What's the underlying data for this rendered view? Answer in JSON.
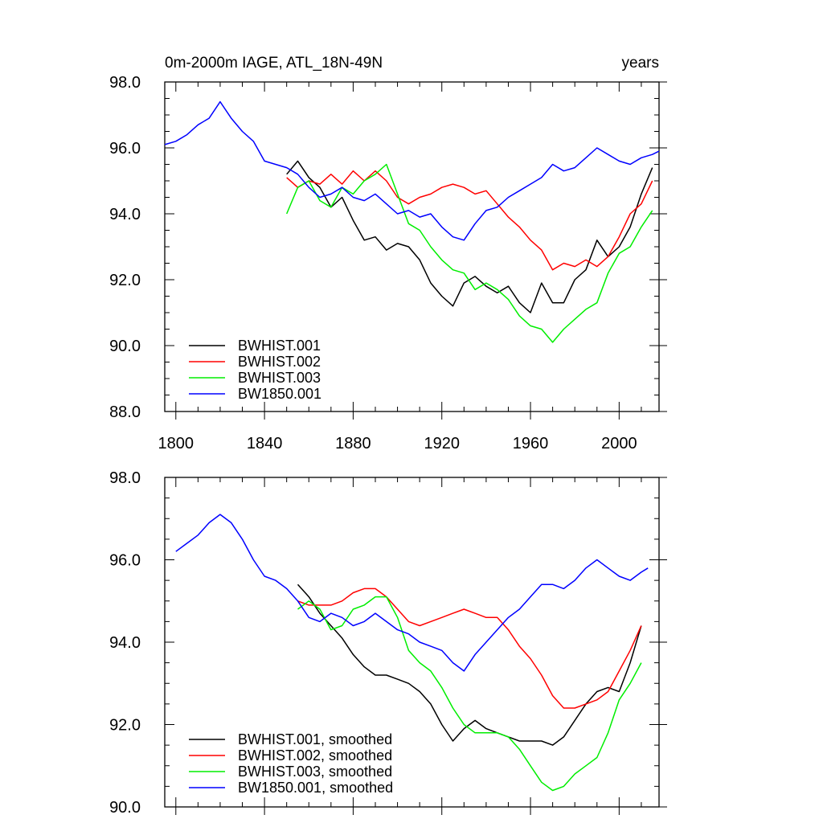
{
  "chart_data": [
    {
      "type": "line",
      "title": "0m-2000m IAGE, ATL_18N-49N",
      "units": "years",
      "xlim": [
        1795,
        2018
      ],
      "ylim": [
        88,
        98
      ],
      "xticks": [
        1800,
        1840,
        1880,
        1920,
        1960,
        2000
      ],
      "xtick_labels": [
        "1800",
        "1840",
        "1880",
        "1920",
        "1960",
        "2000"
      ],
      "yticks": [
        88,
        90,
        92,
        94,
        96,
        98
      ],
      "ytick_labels": [
        "88.0",
        "90.0",
        "92.0",
        "94.0",
        "96.0",
        "98.0"
      ],
      "legend_location": "bottom-left",
      "series": [
        {
          "name": "BWHIST.001",
          "color": "#000000",
          "x": [
            1850,
            1855,
            1860,
            1865,
            1870,
            1875,
            1880,
            1885,
            1890,
            1895,
            1900,
            1905,
            1910,
            1915,
            1920,
            1925,
            1930,
            1935,
            1940,
            1945,
            1950,
            1955,
            1960,
            1965,
            1970,
            1975,
            1980,
            1985,
            1990,
            1995,
            2000,
            2005,
            2010,
            2015
          ],
          "y": [
            95.2,
            95.6,
            95.1,
            94.8,
            94.2,
            94.5,
            93.8,
            93.2,
            93.3,
            92.9,
            93.1,
            93.0,
            92.6,
            91.9,
            91.5,
            91.2,
            91.9,
            92.1,
            91.8,
            91.6,
            91.8,
            91.3,
            91.0,
            91.9,
            91.3,
            91.3,
            92.0,
            92.3,
            93.2,
            92.7,
            93.0,
            93.6,
            94.6,
            95.4
          ]
        },
        {
          "name": "BWHIST.002",
          "color": "#ff0000",
          "x": [
            1850,
            1855,
            1860,
            1865,
            1870,
            1875,
            1880,
            1885,
            1890,
            1895,
            1900,
            1905,
            1910,
            1915,
            1920,
            1925,
            1930,
            1935,
            1940,
            1945,
            1950,
            1955,
            1960,
            1965,
            1970,
            1975,
            1980,
            1985,
            1990,
            1995,
            2000,
            2005,
            2010,
            2015
          ],
          "y": [
            95.1,
            94.8,
            95.0,
            94.9,
            95.2,
            94.9,
            95.3,
            95.0,
            95.3,
            95.0,
            94.5,
            94.3,
            94.5,
            94.6,
            94.8,
            94.9,
            94.8,
            94.6,
            94.7,
            94.3,
            93.9,
            93.6,
            93.2,
            92.9,
            92.3,
            92.5,
            92.4,
            92.6,
            92.4,
            92.7,
            93.3,
            94.0,
            94.3,
            95.0
          ]
        },
        {
          "name": "BWHIST.003",
          "color": "#00ee00",
          "x": [
            1850,
            1855,
            1860,
            1865,
            1870,
            1875,
            1880,
            1885,
            1890,
            1895,
            1900,
            1905,
            1910,
            1915,
            1920,
            1925,
            1930,
            1935,
            1940,
            1945,
            1950,
            1955,
            1960,
            1965,
            1970,
            1975,
            1980,
            1985,
            1990,
            1995,
            2000,
            2005,
            2010,
            2015
          ],
          "y": [
            94.0,
            94.8,
            95.0,
            94.4,
            94.2,
            94.8,
            94.6,
            95.0,
            95.2,
            95.5,
            94.6,
            93.7,
            93.5,
            93.0,
            92.6,
            92.3,
            92.2,
            91.7,
            91.9,
            91.7,
            91.4,
            90.9,
            90.6,
            90.5,
            90.1,
            90.5,
            90.8,
            91.1,
            91.3,
            92.2,
            92.8,
            93.0,
            93.6,
            94.1
          ]
        },
        {
          "name": "BW1850.001",
          "color": "#0000ff",
          "x": [
            1795,
            1800,
            1805,
            1810,
            1815,
            1820,
            1825,
            1830,
            1835,
            1840,
            1845,
            1850,
            1855,
            1860,
            1865,
            1870,
            1875,
            1880,
            1885,
            1890,
            1895,
            1900,
            1905,
            1910,
            1915,
            1920,
            1925,
            1930,
            1935,
            1940,
            1945,
            1950,
            1955,
            1960,
            1965,
            1970,
            1975,
            1980,
            1985,
            1990,
            1995,
            2000,
            2005,
            2010,
            2015,
            2018
          ],
          "y": [
            96.1,
            96.2,
            96.4,
            96.7,
            96.9,
            97.4,
            96.9,
            96.5,
            96.2,
            95.6,
            95.5,
            95.4,
            95.2,
            94.8,
            94.5,
            94.6,
            94.8,
            94.5,
            94.4,
            94.6,
            94.3,
            94.0,
            94.1,
            93.9,
            94.0,
            93.6,
            93.3,
            93.2,
            93.7,
            94.1,
            94.2,
            94.5,
            94.7,
            94.9,
            95.1,
            95.5,
            95.3,
            95.4,
            95.7,
            96.0,
            95.8,
            95.6,
            95.5,
            95.7,
            95.8,
            95.9
          ]
        }
      ]
    },
    {
      "type": "line",
      "title": "",
      "xlim": [
        1795,
        2018
      ],
      "ylim": [
        90,
        98
      ],
      "xticks": [
        1800,
        1840,
        1880,
        1920,
        1960,
        2000
      ],
      "yticks": [
        90,
        92,
        94,
        96,
        98
      ],
      "ytick_labels": [
        "90.0",
        "92.0",
        "94.0",
        "96.0",
        "98.0"
      ],
      "legend_location": "bottom-left",
      "series": [
        {
          "name": "BWHIST.001, smoothed",
          "color": "#000000",
          "x": [
            1855,
            1860,
            1865,
            1870,
            1875,
            1880,
            1885,
            1890,
            1895,
            1900,
            1905,
            1910,
            1915,
            1920,
            1925,
            1930,
            1935,
            1940,
            1945,
            1950,
            1955,
            1960,
            1965,
            1970,
            1975,
            1980,
            1985,
            1990,
            1995,
            2000,
            2005,
            2010
          ],
          "y": [
            95.4,
            95.1,
            94.7,
            94.4,
            94.1,
            93.7,
            93.4,
            93.2,
            93.2,
            93.1,
            93.0,
            92.8,
            92.5,
            92.0,
            91.6,
            91.9,
            92.1,
            91.9,
            91.8,
            91.7,
            91.6,
            91.6,
            91.6,
            91.5,
            91.7,
            92.1,
            92.5,
            92.8,
            92.9,
            92.8,
            93.5,
            94.4
          ]
        },
        {
          "name": "BWHIST.002, smoothed",
          "color": "#ff0000",
          "x": [
            1855,
            1860,
            1865,
            1870,
            1875,
            1880,
            1885,
            1890,
            1895,
            1900,
            1905,
            1910,
            1915,
            1920,
            1925,
            1930,
            1935,
            1940,
            1945,
            1950,
            1955,
            1960,
            1965,
            1970,
            1975,
            1980,
            1985,
            1990,
            1995,
            2000,
            2005,
            2010
          ],
          "y": [
            95.0,
            94.9,
            94.9,
            94.9,
            95.0,
            95.2,
            95.3,
            95.3,
            95.1,
            94.8,
            94.5,
            94.4,
            94.5,
            94.6,
            94.7,
            94.8,
            94.7,
            94.6,
            94.6,
            94.3,
            93.9,
            93.6,
            93.2,
            92.7,
            92.4,
            92.4,
            92.5,
            92.6,
            92.8,
            93.3,
            93.8,
            94.4
          ]
        },
        {
          "name": "BWHIST.003, smoothed",
          "color": "#00ee00",
          "x": [
            1855,
            1860,
            1865,
            1870,
            1875,
            1880,
            1885,
            1890,
            1895,
            1900,
            1905,
            1910,
            1915,
            1920,
            1925,
            1930,
            1935,
            1940,
            1945,
            1950,
            1955,
            1960,
            1965,
            1970,
            1975,
            1980,
            1985,
            1990,
            1995,
            2000,
            2005,
            2010
          ],
          "y": [
            94.8,
            95.0,
            94.8,
            94.3,
            94.4,
            94.8,
            94.9,
            95.1,
            95.1,
            94.6,
            93.8,
            93.5,
            93.3,
            92.9,
            92.4,
            92.0,
            91.8,
            91.8,
            91.8,
            91.7,
            91.4,
            91.0,
            90.6,
            90.4,
            90.5,
            90.8,
            91.0,
            91.2,
            91.8,
            92.6,
            93.0,
            93.5
          ]
        },
        {
          "name": "BW1850.001, smoothed",
          "color": "#0000ff",
          "x": [
            1800,
            1805,
            1810,
            1815,
            1820,
            1825,
            1830,
            1835,
            1840,
            1845,
            1850,
            1855,
            1860,
            1865,
            1870,
            1875,
            1880,
            1885,
            1890,
            1895,
            1900,
            1905,
            1910,
            1915,
            1920,
            1925,
            1930,
            1935,
            1940,
            1945,
            1950,
            1955,
            1960,
            1965,
            1970,
            1975,
            1980,
            1985,
            1990,
            1995,
            2000,
            2005,
            2010,
            2013
          ],
          "y": [
            96.2,
            96.4,
            96.6,
            96.9,
            97.1,
            96.9,
            96.5,
            96.0,
            95.6,
            95.5,
            95.3,
            95.0,
            94.6,
            94.5,
            94.7,
            94.6,
            94.4,
            94.5,
            94.7,
            94.5,
            94.3,
            94.2,
            94.0,
            93.9,
            93.8,
            93.5,
            93.3,
            93.7,
            94.0,
            94.3,
            94.6,
            94.8,
            95.1,
            95.4,
            95.4,
            95.3,
            95.5,
            95.8,
            96.0,
            95.8,
            95.6,
            95.5,
            95.7,
            95.8
          ]
        }
      ]
    }
  ]
}
